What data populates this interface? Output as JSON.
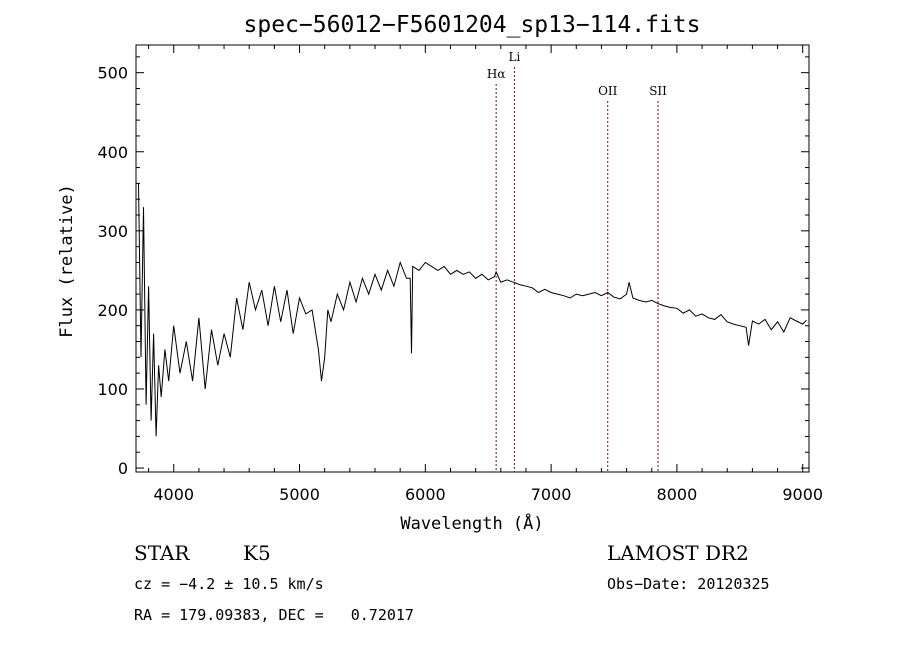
{
  "chart_data": {
    "type": "line",
    "title": "spec−56012−F5601204_sp13−114.fits",
    "xlabel": "Wavelength (Å)",
    "ylabel": "Flux (relative)",
    "xlim": [
      3700,
      9050
    ],
    "ylim": [
      -5,
      535
    ],
    "x_ticks": [
      4000,
      5000,
      6000,
      7000,
      8000,
      9000
    ],
    "y_ticks": [
      0,
      100,
      200,
      300,
      400,
      500
    ],
    "x_tick_labels": [
      "4000",
      "5000",
      "6000",
      "7000",
      "8000",
      "9000"
    ],
    "y_tick_labels": [
      "0",
      "100",
      "200",
      "300",
      "400",
      "500"
    ],
    "grid": false,
    "line_color": "#000000",
    "marker_line_color": "#8b0000",
    "series": [
      {
        "x": [
          3720,
          3740,
          3760,
          3780,
          3800,
          3820,
          3840,
          3860,
          3880,
          3900,
          3930,
          3960,
          4000,
          4050,
          4100,
          4150,
          4200,
          4250,
          4300,
          4350,
          4400,
          4450,
          4500,
          4550,
          4600,
          4650,
          4700,
          4750,
          4800,
          4850,
          4900,
          4950,
          5000,
          5050,
          5100,
          5150,
          5175,
          5200,
          5225,
          5250,
          5300,
          5350,
          5400,
          5450,
          5500,
          5550,
          5600,
          5650,
          5700,
          5750,
          5800,
          5850,
          5880,
          5890,
          5900,
          5950,
          6000,
          6050,
          6100,
          6150,
          6200,
          6250,
          6300,
          6350,
          6400,
          6450,
          6500,
          6550,
          6563,
          6600,
          6650,
          6700,
          6750,
          6800,
          6850,
          6900,
          6950,
          7000,
          7050,
          7100,
          7150,
          7200,
          7250,
          7300,
          7350,
          7400,
          7450,
          7500,
          7550,
          7600,
          7620,
          7650,
          7700,
          7750,
          7800,
          7850,
          7900,
          7950,
          8000,
          8050,
          8100,
          8150,
          8200,
          8250,
          8300,
          8350,
          8400,
          8450,
          8500,
          8550,
          8570,
          8600,
          8650,
          8700,
          8750,
          8800,
          8850,
          8900,
          8950,
          9000,
          9030
        ],
        "y": [
          360,
          140,
          330,
          80,
          230,
          60,
          170,
          40,
          130,
          90,
          150,
          110,
          180,
          120,
          160,
          110,
          190,
          100,
          175,
          130,
          170,
          140,
          215,
          175,
          235,
          200,
          225,
          180,
          230,
          185,
          225,
          170,
          215,
          195,
          200,
          150,
          110,
          140,
          200,
          185,
          220,
          200,
          235,
          210,
          240,
          220,
          245,
          225,
          250,
          230,
          260,
          240,
          240,
          145,
          255,
          250,
          260,
          255,
          250,
          255,
          245,
          250,
          245,
          248,
          240,
          245,
          238,
          242,
          248,
          235,
          238,
          235,
          232,
          230,
          228,
          222,
          226,
          222,
          220,
          218,
          215,
          220,
          218,
          220,
          222,
          218,
          222,
          216,
          214,
          220,
          235,
          215,
          212,
          210,
          212,
          208,
          205,
          203,
          202,
          196,
          200,
          192,
          195,
          190,
          188,
          194,
          185,
          182,
          180,
          178,
          155,
          186,
          182,
          188,
          175,
          185,
          172,
          190,
          186,
          182,
          187
        ]
      }
    ],
    "annotations": [
      {
        "x": 6563,
        "label": "Hα"
      },
      {
        "x": 6708,
        "label": "Li"
      },
      {
        "x": 7450,
        "label": "OII"
      },
      {
        "x": 7850,
        "label": "SII"
      }
    ]
  },
  "footer": {
    "object_class": "STAR",
    "subclass": "K5",
    "survey": "LAMOST DR2",
    "redshift": "cz = −4.2 ± 10.5 km/s",
    "obs_date": "Obs−Date: 20120325",
    "coords": "RA = 179.09383, DEC =   0.72017"
  }
}
